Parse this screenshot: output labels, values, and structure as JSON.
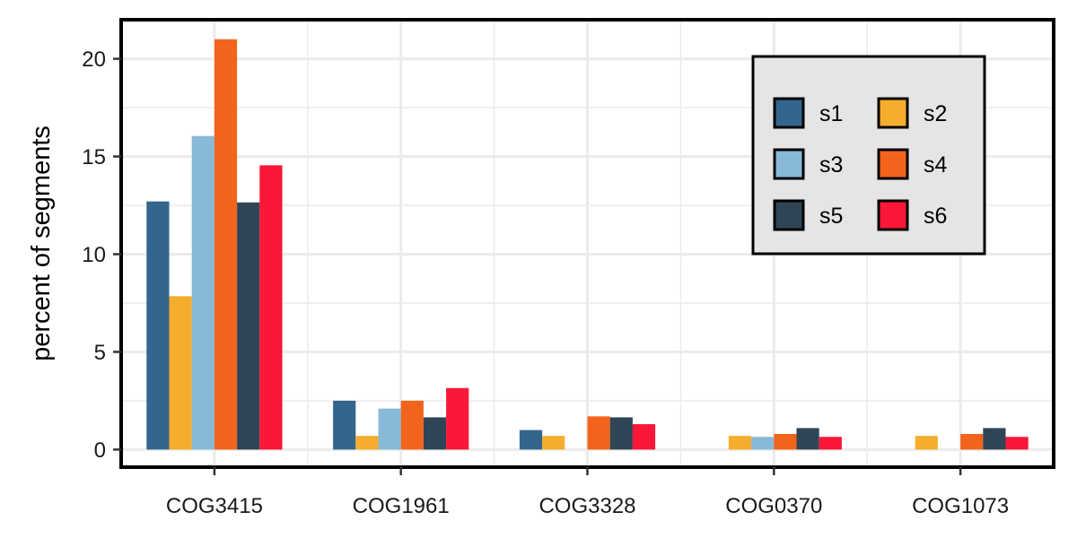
{
  "chart_data": {
    "type": "bar",
    "title": "",
    "xlabel": "",
    "ylabel": "percent of segments",
    "categories": [
      "COG3415",
      "COG1961",
      "COG3328",
      "COG0370",
      "COG1073"
    ],
    "ylim": [
      -0.9,
      22
    ],
    "yticks": [
      0,
      5,
      10,
      15,
      20
    ],
    "grid": true,
    "legend": "top-right",
    "series": [
      {
        "name": "s1",
        "color": "#34658c",
        "values": [
          12.7,
          2.5,
          1.0,
          0,
          0
        ]
      },
      {
        "name": "s2",
        "color": "#f5ad2e",
        "values": [
          7.85,
          0.7,
          0.7,
          0.7,
          0.7
        ]
      },
      {
        "name": "s3",
        "color": "#88b9d7",
        "values": [
          16.05,
          2.1,
          0,
          0.65,
          0
        ]
      },
      {
        "name": "s4",
        "color": "#f2641c",
        "values": [
          21.0,
          2.5,
          1.7,
          0.8,
          0.8
        ]
      },
      {
        "name": "s5",
        "color": "#2f4555",
        "values": [
          12.65,
          1.65,
          1.65,
          1.1,
          1.1
        ]
      },
      {
        "name": "s6",
        "color": "#fb1737",
        "values": [
          14.55,
          3.15,
          1.3,
          0.65,
          0.65
        ]
      }
    ]
  }
}
